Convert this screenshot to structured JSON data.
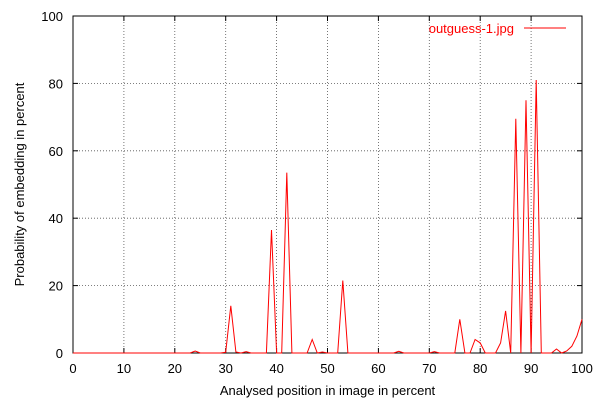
{
  "chart_data": {
    "type": "line",
    "xlabel": "Analysed position in image in percent",
    "ylabel": "Probability of embedding in percent",
    "xlim": [
      0,
      100
    ],
    "ylim": [
      0,
      100
    ],
    "x_ticks": [
      "0",
      "10",
      "20",
      "30",
      "40",
      "50",
      "60",
      "70",
      "80",
      "90",
      "100"
    ],
    "y_ticks": [
      "0",
      "20",
      "40",
      "60",
      "80",
      "100"
    ],
    "grid": true,
    "legend_position": "top-right",
    "series": [
      {
        "name": "outguess-1.jpg",
        "color": "#ff0000",
        "points": [
          [
            0,
            0
          ],
          [
            23,
            0
          ],
          [
            24,
            0.6
          ],
          [
            25,
            0
          ],
          [
            29,
            0
          ],
          [
            30,
            0.2
          ],
          [
            31,
            14
          ],
          [
            32,
            0.3
          ],
          [
            33,
            0
          ],
          [
            34,
            0.4
          ],
          [
            35,
            0
          ],
          [
            38,
            0
          ],
          [
            39,
            36.5
          ],
          [
            40,
            0
          ],
          [
            41,
            0
          ],
          [
            42,
            53.5
          ],
          [
            43,
            0
          ],
          [
            46,
            0
          ],
          [
            47,
            4
          ],
          [
            48,
            0
          ],
          [
            49,
            0.3
          ],
          [
            50,
            0
          ],
          [
            52,
            0
          ],
          [
            53,
            21.5
          ],
          [
            54,
            0
          ],
          [
            63,
            0
          ],
          [
            64,
            0.5
          ],
          [
            65,
            0
          ],
          [
            70,
            0
          ],
          [
            71,
            0.4
          ],
          [
            72,
            0
          ],
          [
            75,
            0
          ],
          [
            76,
            10
          ],
          [
            77,
            0
          ],
          [
            78,
            0
          ],
          [
            79,
            4
          ],
          [
            80,
            3
          ],
          [
            81,
            0
          ],
          [
            83,
            0
          ],
          [
            84,
            3
          ],
          [
            85,
            12.5
          ],
          [
            86,
            0
          ],
          [
            87,
            69.5
          ],
          [
            88,
            0
          ],
          [
            89,
            75
          ],
          [
            90,
            0
          ],
          [
            91,
            81
          ],
          [
            92,
            0
          ],
          [
            94,
            0
          ],
          [
            95,
            1.2
          ],
          [
            96,
            0
          ],
          [
            97,
            0.6
          ],
          [
            98,
            2
          ],
          [
            99,
            5
          ],
          [
            100,
            10
          ]
        ]
      }
    ]
  }
}
